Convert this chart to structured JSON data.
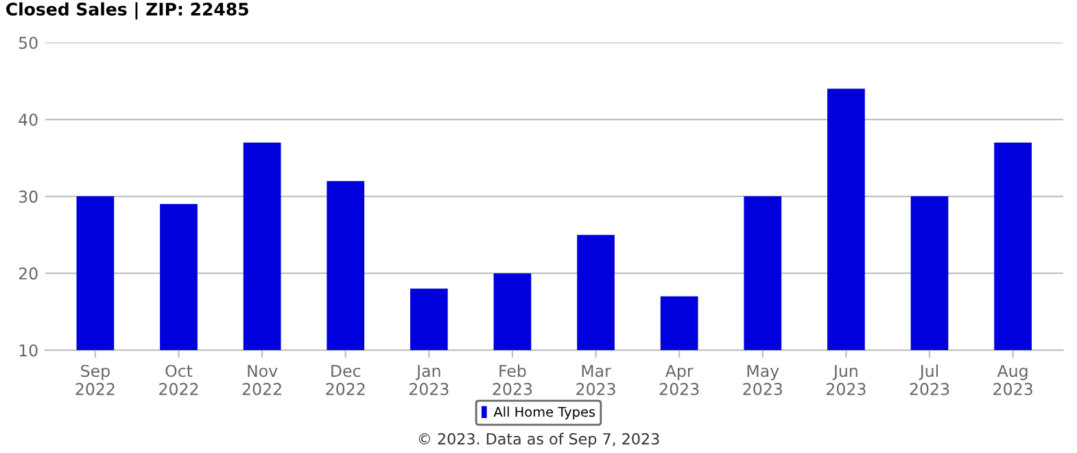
{
  "chart_data": {
    "type": "bar",
    "title": "Closed Sales | ZIP: 22485",
    "categories": [
      "Sep\n2022",
      "Oct\n2022",
      "Nov\n2022",
      "Dec\n2022",
      "Jan\n2023",
      "Feb\n2023",
      "Mar\n2023",
      "Apr\n2023",
      "May\n2023",
      "Jun\n2023",
      "Jul\n2023",
      "Aug\n2023"
    ],
    "series": [
      {
        "name": "All Home Types",
        "color": "#0000dd",
        "values": [
          30,
          29,
          37,
          32,
          18,
          20,
          25,
          17,
          30,
          44,
          30,
          37
        ]
      }
    ],
    "ylim": [
      10,
      50
    ],
    "yticks": [
      10,
      20,
      30,
      40,
      50
    ],
    "grid": "y",
    "legend": "bottom",
    "annotations": [
      "© 2023. Data as of Sep 7, 2023"
    ]
  }
}
